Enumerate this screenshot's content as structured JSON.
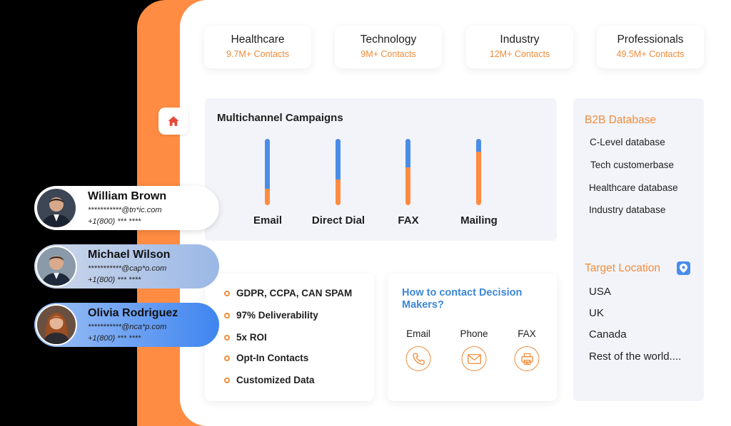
{
  "stats": [
    {
      "title": "Healthcare",
      "count": "9.7M+ Contacts"
    },
    {
      "title": "Technology",
      "count": "9M+ Contacts"
    },
    {
      "title": "Industry",
      "count": "12M+ Contacts"
    },
    {
      "title": "Professionals",
      "count": "49.5M+ Contacts"
    }
  ],
  "campaign": {
    "title": "Multichannel Campaigns",
    "channels": [
      {
        "label": "Email",
        "blue_fraction": 0.75
      },
      {
        "label": "Direct Dial",
        "blue_fraction": 0.61
      },
      {
        "label": "FAX",
        "blue_fraction": 0.43
      },
      {
        "label": "Mailing",
        "blue_fraction": 0.19
      }
    ]
  },
  "b2b": {
    "heading": "B2B Database",
    "items": [
      "C-Level database",
      "Tech customerbase",
      "Healthcare database",
      "Industry database"
    ]
  },
  "location": {
    "heading": "Target Location",
    "items": [
      "USA",
      "UK",
      "Canada",
      "Rest of the world...."
    ]
  },
  "features": [
    "GDPR, CCPA, CAN SPAM",
    "97% Deliverability",
    "5x ROI",
    "Opt-In Contacts",
    "Customized Data"
  ],
  "contact": {
    "title": "How to contact Decision Makers?",
    "methods": [
      {
        "label": "Email",
        "icon": "phone-icon"
      },
      {
        "label": "Phone",
        "icon": "envelope-icon"
      },
      {
        "label": "FAX",
        "icon": "printer-icon"
      }
    ]
  },
  "profiles": [
    {
      "name": "William Brown",
      "email": "***********@tn*ic.com",
      "phone": "+1(800) *** ****"
    },
    {
      "name": "Michael Wilson",
      "email": "***********@cap*o.com",
      "phone": "+1(800) *** ****"
    },
    {
      "name": "Olivia Rodriguez",
      "email": "***********@nca*p.com",
      "phone": "+1(800) *** ****"
    }
  ],
  "colors": {
    "accent_orange": "#ff8c42",
    "accent_blue": "#4a8de8"
  }
}
